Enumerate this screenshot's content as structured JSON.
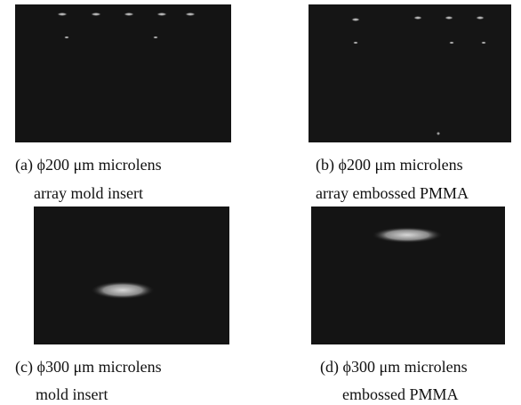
{
  "panels": [
    {
      "caption": [
        "(a) ϕ200 μm microlens",
        "array mold insert"
      ]
    },
    {
      "caption": [
        "(b) ϕ200 μm microlens",
        "array embossed PMMA"
      ]
    },
    {
      "caption": [
        "(c) ϕ300 μm microlens",
        "mold insert"
      ]
    },
    {
      "caption": [
        "(d) ϕ300 μm microlens",
        "embossed PMMA"
      ]
    }
  ]
}
